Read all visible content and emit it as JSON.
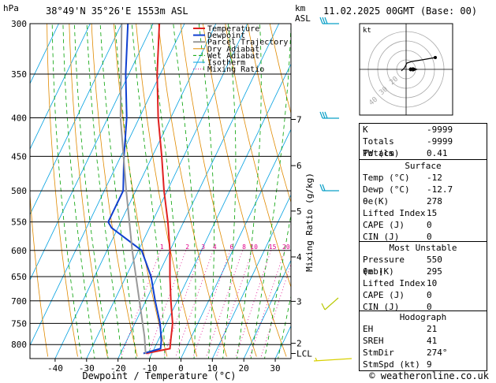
{
  "header": {
    "hpa": "hPa",
    "location": "38°49'N  35°26'E  1553m  ASL",
    "km": "km",
    "asl": "ASL",
    "datetime": "11.02.2025  00GMT  (Base: 00)"
  },
  "footer": {
    "copyright": "© weatheronline.co.uk"
  },
  "colors": {
    "temperature": "#e02020",
    "dewpoint": "#1040d0",
    "parcel": "#999999",
    "dry_adiabat": "#e08a00",
    "wet_adiabat": "#00a000",
    "isotherm": "#00a0e0",
    "mixing_ratio": "#e0008a",
    "wind": "#0aa0c8"
  },
  "chart_data": {
    "type": "line",
    "xlabel": "Dewpoint / Temperature (°C)",
    "ylabel": "hPa",
    "mixing_ratio_label": "Mixing Ratio (g/kg)",
    "x_ticks": [
      -40,
      -30,
      -20,
      -10,
      0,
      10,
      20,
      30
    ],
    "p_ticks": [
      300,
      350,
      400,
      450,
      500,
      550,
      600,
      650,
      700,
      750,
      800
    ],
    "km_ticks": [
      {
        "label": "7",
        "p": 402
      },
      {
        "label": "6",
        "p": 463
      },
      {
        "label": "5",
        "p": 532
      },
      {
        "label": "4",
        "p": 612
      },
      {
        "label": "3",
        "p": 701
      },
      {
        "label": "2",
        "p": 797
      },
      {
        "label": "LCL",
        "p": 822
      }
    ],
    "mixing_ratio_labels": [
      "1",
      "2",
      "3",
      "4",
      "6",
      "8",
      "10",
      "15",
      "20",
      "25"
    ],
    "mixing_ratio_values": [
      1,
      2,
      3,
      4,
      6,
      8,
      10,
      15,
      20,
      25
    ],
    "legend": [
      "Temperature",
      "Dewpoint",
      "Parcel Trajectory",
      "Dry Adiabat",
      "Wet Adiabat",
      "Isotherm",
      "Mixing Ratio"
    ],
    "series": [
      {
        "name": "Temperature",
        "points": [
          [
            822,
            -12
          ],
          [
            810,
            -5
          ],
          [
            790,
            -6
          ],
          [
            750,
            -8
          ],
          [
            700,
            -12
          ],
          [
            650,
            -16
          ],
          [
            600,
            -20
          ],
          [
            550,
            -25
          ],
          [
            500,
            -31
          ],
          [
            450,
            -37
          ],
          [
            400,
            -44
          ],
          [
            350,
            -51
          ],
          [
            300,
            -58
          ]
        ]
      },
      {
        "name": "Dewpoint",
        "points": [
          [
            822,
            -12.7
          ],
          [
            810,
            -8
          ],
          [
            790,
            -9
          ],
          [
            750,
            -12
          ],
          [
            700,
            -17
          ],
          [
            650,
            -22
          ],
          [
            600,
            -29
          ],
          [
            560,
            -42
          ],
          [
            550,
            -44
          ],
          [
            500,
            -44
          ],
          [
            450,
            -49
          ],
          [
            400,
            -54
          ],
          [
            350,
            -61
          ],
          [
            300,
            -68
          ]
        ]
      },
      {
        "name": "Parcel Trajectory",
        "points": [
          [
            822,
            -12
          ],
          [
            780,
            -15
          ],
          [
            700,
            -22
          ],
          [
            600,
            -32
          ],
          [
            500,
            -43
          ],
          [
            400,
            -56
          ],
          [
            300,
            -70
          ]
        ]
      }
    ]
  },
  "hodograph": {
    "label": "kt",
    "ring_labels": [
      "40",
      "30",
      "20"
    ]
  },
  "indices": {
    "basic": [
      {
        "label": "K",
        "value": "-9999"
      },
      {
        "label": "Totals Totals",
        "value": "-9999"
      },
      {
        "label": "PW (cm)",
        "value": "0.41"
      }
    ],
    "surface": {
      "title": "Surface",
      "rows": [
        {
          "label": "Temp (°C)",
          "value": "-12"
        },
        {
          "label": "Dewp (°C)",
          "value": "-12.7"
        },
        {
          "label": "θe(K)",
          "value": "278"
        },
        {
          "label": "Lifted Index",
          "value": "15"
        },
        {
          "label": "CAPE (J)",
          "value": "0"
        },
        {
          "label": "CIN (J)",
          "value": "0"
        }
      ]
    },
    "most_unstable": {
      "title": "Most Unstable",
      "rows": [
        {
          "label": "Pressure (mb)",
          "value": "550"
        },
        {
          "label": "θe (K)",
          "value": "295"
        },
        {
          "label": "Lifted Index",
          "value": "10"
        },
        {
          "label": "CAPE (J)",
          "value": "0"
        },
        {
          "label": "CIN (J)",
          "value": "0"
        }
      ]
    },
    "hodograph": {
      "title": "Hodograph",
      "rows": [
        {
          "label": "EH",
          "value": "21"
        },
        {
          "label": "SREH",
          "value": "41"
        },
        {
          "label": "StmDir",
          "value": "274°"
        },
        {
          "label": "StmSpd (kt)",
          "value": "9"
        }
      ]
    }
  }
}
